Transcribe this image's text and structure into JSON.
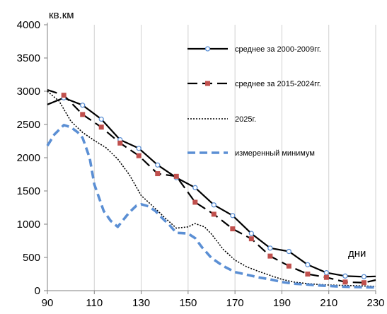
{
  "chart_data": {
    "type": "line",
    "ylabel": "кв.км",
    "xlabel": "дни",
    "xlim": [
      90,
      230
    ],
    "ylim": [
      0,
      4000
    ],
    "x_ticks": [
      "90",
      "110",
      "130",
      "150",
      "170",
      "190",
      "210",
      "230"
    ],
    "y_ticks": [
      "0",
      "500",
      "1000",
      "1500",
      "2000",
      "2500",
      "3000",
      "3500",
      "4000"
    ],
    "grid": "vertical",
    "legend_position": "right",
    "series": [
      {
        "name": "среднее за 2000-2009гг.",
        "style": "solid-circle",
        "color": "#000000",
        "marker_color": "#5b8fd4",
        "x": [
          90,
          97,
          105,
          113,
          121,
          129,
          137,
          145,
          153,
          161,
          169,
          177,
          185,
          193,
          201,
          209,
          217,
          225,
          230
        ],
        "y": [
          2800,
          2900,
          2790,
          2580,
          2270,
          2140,
          1890,
          1700,
          1550,
          1290,
          1130,
          860,
          640,
          590,
          390,
          270,
          220,
          210,
          215
        ]
      },
      {
        "name": "среднее за 2015-2024гг.",
        "style": "dashed-square",
        "color": "#000000",
        "marker_color": "#c0504d",
        "x": [
          90,
          97,
          105,
          113,
          121,
          129,
          137,
          145,
          153,
          161,
          169,
          177,
          185,
          193,
          201,
          209,
          217,
          225,
          230
        ],
        "y": [
          3020,
          2940,
          2650,
          2460,
          2220,
          2030,
          1760,
          1720,
          1330,
          1150,
          930,
          780,
          520,
          370,
          250,
          200,
          130,
          120,
          160
        ]
      },
      {
        "name": "2025г.",
        "style": "dotted",
        "color": "#000000",
        "x": [
          90,
          95,
          100,
          105,
          110,
          115,
          120,
          125,
          130,
          135,
          140,
          145,
          150,
          153,
          157,
          160,
          165,
          170,
          175,
          180,
          185,
          190,
          195,
          200,
          205,
          210,
          215,
          220,
          225,
          230
        ],
        "y": [
          3000,
          2850,
          2550,
          2380,
          2260,
          2150,
          1980,
          1740,
          1430,
          1270,
          1100,
          940,
          960,
          1010,
          960,
          850,
          620,
          460,
          360,
          290,
          230,
          170,
          130,
          110,
          95,
          85,
          80,
          75,
          70,
          65
        ]
      },
      {
        "name": "измеренный минимум",
        "style": "dashed-thick",
        "color": "#5b8fd4",
        "x": [
          90,
          93,
          97,
          100,
          103,
          105,
          108,
          110,
          114,
          117,
          120,
          122,
          125,
          128,
          130,
          133,
          136,
          139,
          142,
          145,
          150,
          153,
          156,
          160,
          165,
          170,
          175,
          180,
          185,
          190,
          195,
          200,
          205,
          210,
          215,
          220,
          225,
          230
        ],
        "y": [
          2180,
          2350,
          2490,
          2460,
          2380,
          2300,
          2000,
          1600,
          1200,
          1050,
          960,
          1050,
          1180,
          1280,
          1300,
          1270,
          1200,
          1090,
          990,
          870,
          860,
          790,
          650,
          490,
          370,
          280,
          240,
          200,
          170,
          130,
          105,
          95,
          80,
          70,
          62,
          55,
          52,
          50
        ]
      }
    ]
  }
}
